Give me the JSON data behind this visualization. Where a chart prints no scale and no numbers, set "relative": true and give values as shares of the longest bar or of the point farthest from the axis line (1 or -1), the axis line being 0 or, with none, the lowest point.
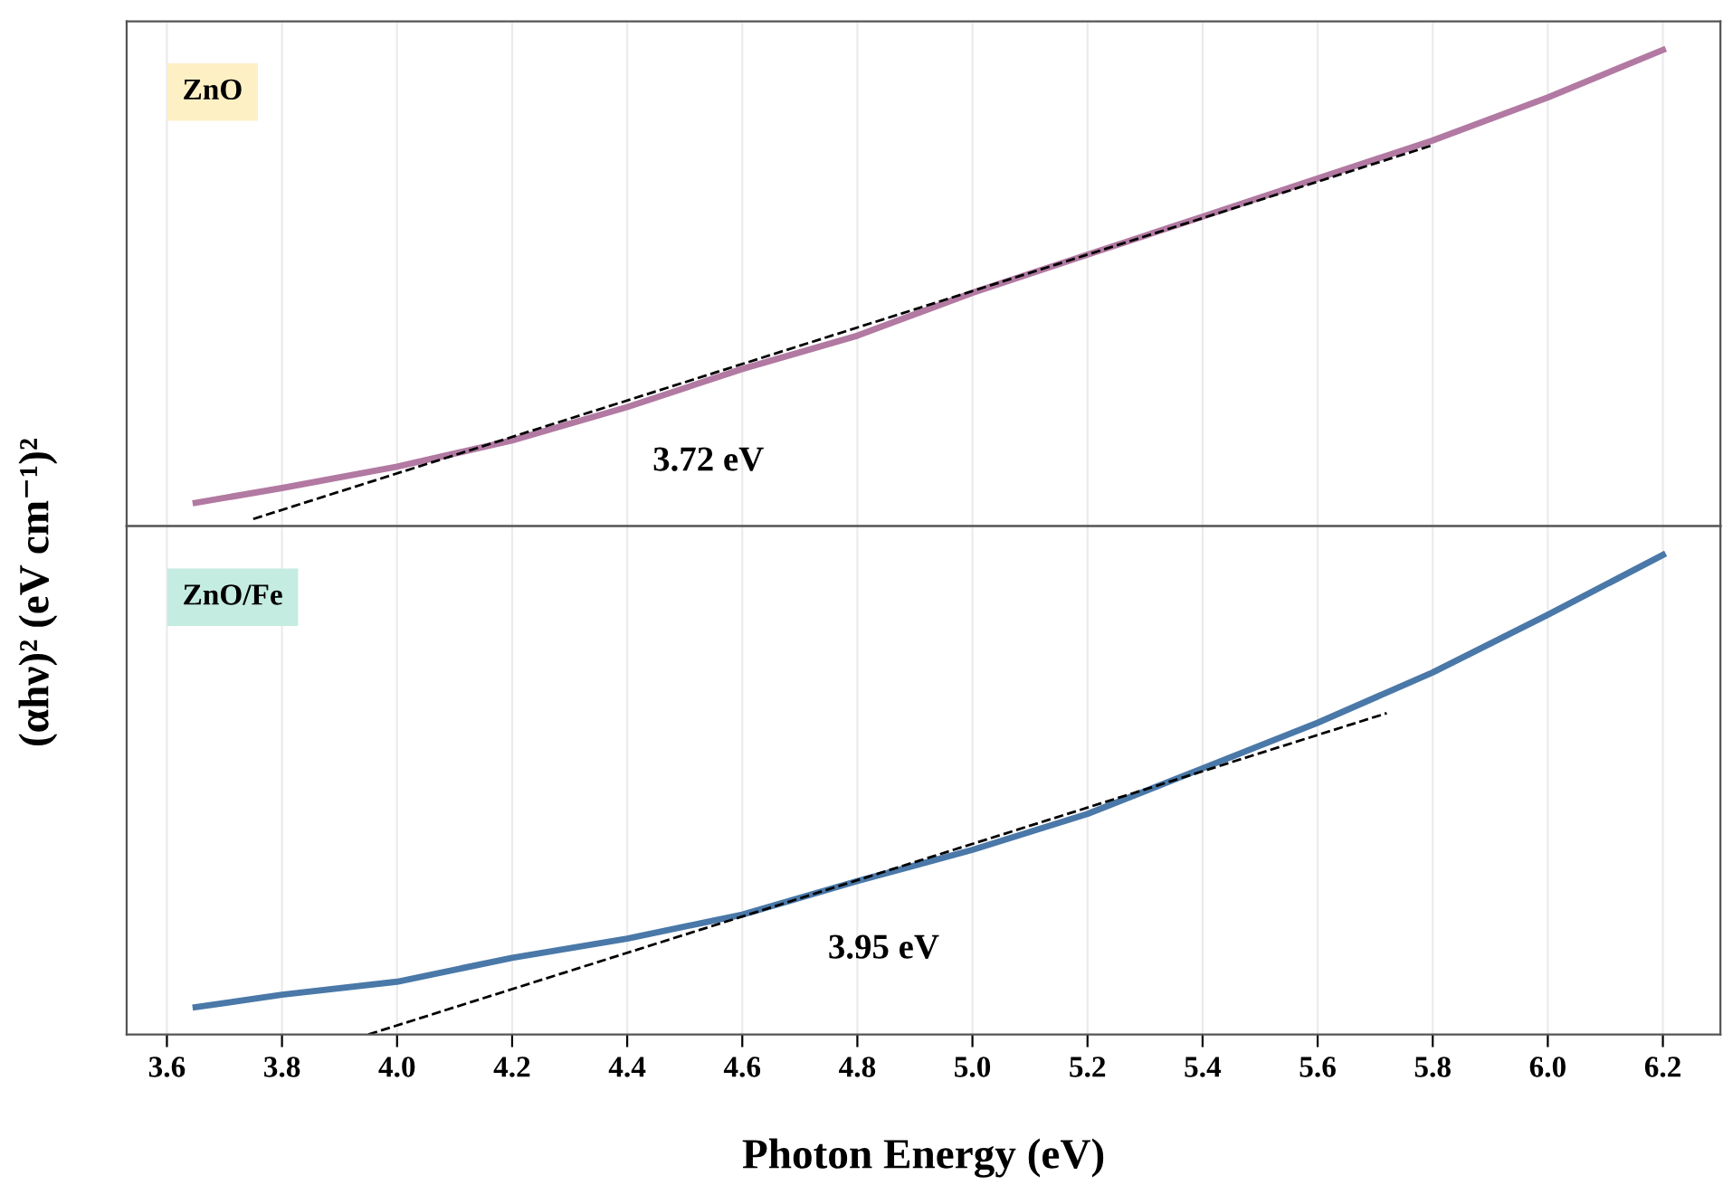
{
  "chart_data": [
    {
      "type": "line",
      "relative": true,
      "grid": true,
      "tick_labels": false,
      "ylabel": "(αhν)² (eV cm⁻¹)²",
      "xlim": [
        3.53,
        6.3
      ],
      "x": [
        3.65,
        3.8,
        4.0,
        4.2,
        4.4,
        4.6,
        4.8,
        5.0,
        5.2,
        5.4,
        5.6,
        5.8,
        6.0,
        6.2
      ],
      "annotations": [
        "3.72 eV"
      ],
      "series": [
        {
          "name": "ZnO",
          "color": "#b279a2",
          "line_style": "solid",
          "values": [
            0.049,
            0.08,
            0.125,
            0.18,
            0.25,
            0.33,
            0.4,
            0.49,
            0.57,
            0.65,
            0.73,
            0.81,
            0.9,
            1.0
          ]
        },
        {
          "type": "line",
          "color": "#000000",
          "line_style": "dashed",
          "x": [
            3.75,
            5.8
          ],
          "values": [
            0.015,
            0.8
          ]
        }
      ]
    },
    {
      "type": "line",
      "relative": true,
      "grid": true,
      "tick_labels": "x",
      "xlabel": "Photon Energy (eV)",
      "xlim": [
        3.53,
        6.3
      ],
      "xticks": [
        3.6,
        3.8,
        {
          "value": 4,
          "label": "4.0"
        },
        4.2,
        4.4,
        4.6,
        4.8,
        {
          "value": 5,
          "label": "5.0"
        },
        5.2,
        5.4,
        5.6,
        5.8,
        {
          "value": 6,
          "label": "6.0"
        },
        6.2
      ],
      "x": [
        3.65,
        3.8,
        4.0,
        4.2,
        4.4,
        4.6,
        4.8,
        5.0,
        5.2,
        5.4,
        5.6,
        5.8,
        6.0,
        6.2
      ],
      "annotations": [
        "3.95 eV"
      ],
      "series": [
        {
          "name": "ZnO/Fe",
          "color": "#4a78a8",
          "line_style": "solid",
          "values": [
            0.057,
            0.083,
            0.11,
            0.16,
            0.2,
            0.25,
            0.32,
            0.385,
            0.46,
            0.555,
            0.65,
            0.755,
            0.875,
            1.0
          ]
        },
        {
          "type": "line",
          "color": "#000000",
          "line_style": "dashed",
          "x": [
            3.95,
            5.72
          ],
          "values": [
            0.0,
            0.67
          ]
        }
      ]
    }
  ]
}
